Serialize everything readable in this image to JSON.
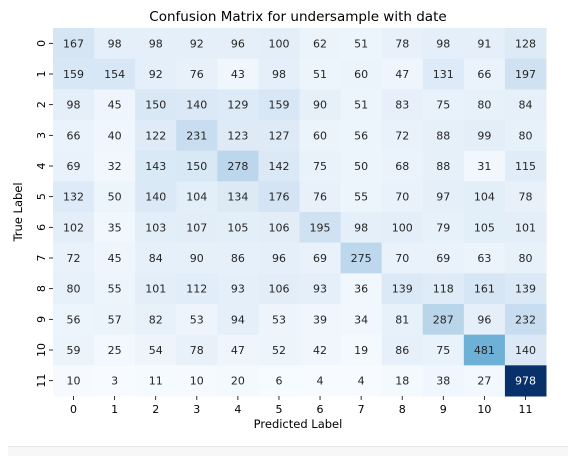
{
  "chart_data": {
    "type": "heatmap",
    "title": "Confusion Matrix for  undersample with date",
    "xlabel": "Predicted Label",
    "ylabel": "True Label",
    "x_tick_labels": [
      "0",
      "1",
      "2",
      "3",
      "4",
      "5",
      "6",
      "7",
      "8",
      "9",
      "10",
      "11"
    ],
    "y_tick_labels": [
      "0",
      "1",
      "2",
      "3",
      "4",
      "5",
      "6",
      "7",
      "8",
      "9",
      "10",
      "11"
    ],
    "colormap": "Blues",
    "colormap_stops": [
      "#f7fbff",
      "#deebf7",
      "#c6dbef",
      "#9ecae1",
      "#6baed6",
      "#4292c6",
      "#2171b5",
      "#08519c",
      "#08306b"
    ],
    "value_range": [
      3,
      978
    ],
    "colorbar": false,
    "matrix": [
      [
        167,
        98,
        98,
        92,
        96,
        100,
        62,
        51,
        78,
        98,
        91,
        128
      ],
      [
        159,
        154,
        92,
        76,
        43,
        98,
        51,
        60,
        47,
        131,
        66,
        197
      ],
      [
        98,
        45,
        150,
        140,
        129,
        159,
        90,
        51,
        83,
        75,
        80,
        84
      ],
      [
        66,
        40,
        122,
        231,
        123,
        127,
        60,
        56,
        72,
        88,
        99,
        80
      ],
      [
        69,
        32,
        143,
        150,
        278,
        142,
        75,
        50,
        68,
        88,
        31,
        115
      ],
      [
        132,
        50,
        140,
        104,
        134,
        176,
        76,
        55,
        70,
        97,
        104,
        78
      ],
      [
        102,
        35,
        103,
        107,
        105,
        106,
        195,
        98,
        100,
        79,
        105,
        101
      ],
      [
        72,
        45,
        84,
        90,
        86,
        96,
        69,
        275,
        70,
        69,
        63,
        80
      ],
      [
        80,
        55,
        101,
        112,
        93,
        106,
        93,
        36,
        139,
        118,
        161,
        139
      ],
      [
        56,
        57,
        82,
        53,
        94,
        53,
        39,
        34,
        81,
        287,
        96,
        232
      ],
      [
        59,
        25,
        54,
        78,
        47,
        52,
        42,
        19,
        86,
        75,
        481,
        140
      ],
      [
        10,
        3,
        11,
        10,
        20,
        6,
        4,
        4,
        18,
        38,
        27,
        978
      ]
    ]
  }
}
